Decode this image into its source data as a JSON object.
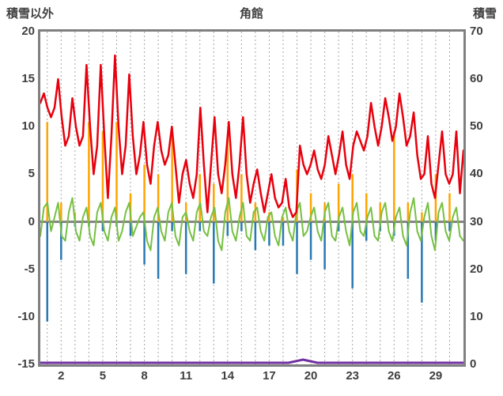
{
  "title": "角館",
  "left_axis": {
    "title": "積雪以外",
    "ticks": [
      "20",
      "15",
      "10",
      "5",
      "0",
      "-5",
      "-10",
      "-15"
    ]
  },
  "right_axis": {
    "title": "積雪",
    "ticks": [
      "70",
      "60",
      "50",
      "40",
      "30",
      "20",
      "10",
      "0"
    ]
  },
  "x_axis": {
    "tick_labels": [
      2,
      5,
      8,
      11,
      14,
      17,
      20,
      23,
      26,
      29
    ],
    "grid_interval_days": 1
  },
  "colors": {
    "red": "#e8000d",
    "orange": "#ffa400",
    "green": "#76c043",
    "blue": "#2878b4",
    "purple": "#7030a0",
    "frame": "#808080",
    "grid": "#a6a6a6",
    "zero_line": "#808080",
    "text": "#404040",
    "background": "#ffffff"
  },
  "chart_data": {
    "type": "line",
    "title": "角館",
    "x_domain": [
      0.5,
      31
    ],
    "left_ylim": [
      -15,
      20
    ],
    "right_ylim": [
      0,
      70
    ],
    "grid": "vertical-dashed-daily",
    "legend": "none",
    "series": [
      {
        "name": "orange-bars",
        "type": "bar",
        "axis": "left",
        "color": "#ffa400",
        "bar_width": 2.5,
        "values": [
          10.5,
          2,
          1,
          10.5,
          9.5,
          10.5,
          3,
          6,
          5,
          10,
          2,
          5,
          4,
          9,
          5,
          2,
          1,
          0.5,
          5.5,
          3,
          2,
          4,
          5,
          3,
          2,
          9.5,
          2,
          1,
          5,
          3
        ]
      },
      {
        "name": "blue-bars",
        "type": "bar",
        "axis": "left",
        "color": "#2878b4",
        "bar_width": 2.5,
        "values": [
          -10.5,
          -4,
          -0.5,
          -0.5,
          -1,
          -0.5,
          -1.5,
          -4.5,
          -6,
          -1,
          -5.5,
          -1,
          -6.5,
          -1.5,
          -1,
          -3,
          -2.5,
          -2.5,
          -5.5,
          -4,
          -5,
          -1,
          -7,
          -2,
          -1,
          -1.5,
          -6,
          -8.5,
          -2,
          -1
        ]
      },
      {
        "name": "green-line",
        "type": "line",
        "axis": "left",
        "color": "#76c043",
        "width": 2,
        "samples_per_day": 4,
        "values": [
          -1.5,
          1.5,
          2,
          -1,
          0.5,
          2,
          -1.5,
          -2,
          1,
          2.5,
          -1,
          -2,
          0.5,
          1.5,
          -1.5,
          -2.5,
          1,
          2,
          -1,
          -2,
          0.5,
          1.5,
          -2,
          -1,
          1,
          2,
          -1.5,
          -0.5,
          0.5,
          1,
          -2,
          -3,
          0.5,
          1.5,
          -1,
          -2,
          1,
          2,
          -1.5,
          -2.5,
          0.5,
          1,
          -1,
          -2,
          1,
          2,
          -1,
          -1.5,
          0.5,
          1.5,
          -2,
          -3,
          1,
          2.5,
          -1,
          -2,
          0.5,
          2,
          -1.5,
          -2,
          1,
          1.5,
          -1,
          -2,
          0.5,
          1,
          -1.5,
          -2.5,
          0.5,
          1.5,
          -1,
          -2,
          1,
          2,
          -1.5,
          -1,
          0.5,
          1.5,
          -1,
          -2,
          1,
          2,
          -1.5,
          -2,
          0.5,
          1.5,
          -1,
          -2.5,
          1,
          2,
          -1,
          -1.5,
          0.5,
          1.5,
          -1.5,
          -2,
          1,
          2,
          -1,
          -2,
          0.5,
          1.5,
          -1.5,
          -2.5,
          1,
          2.5,
          -1,
          -2,
          0.5,
          2,
          -1.5,
          -3,
          1,
          2,
          -1,
          -2,
          0.5,
          1.5,
          -1.5,
          -2
        ]
      },
      {
        "name": "red-line",
        "type": "line",
        "axis": "left",
        "color": "#e8000d",
        "width": 2.5,
        "samples_per_day": 4,
        "values": [
          12.5,
          13.5,
          12,
          11,
          12,
          15,
          11,
          8,
          9,
          13,
          10,
          8,
          9,
          16.5,
          10,
          5,
          8,
          16.5,
          9,
          2.5,
          9,
          17.5,
          10,
          5,
          8,
          15.5,
          9,
          5,
          7,
          10.5,
          6,
          4,
          8,
          10.5,
          7.5,
          6,
          7,
          10,
          6,
          2,
          5,
          6.5,
          4,
          2.5,
          5,
          12,
          6,
          1,
          6,
          11,
          5,
          3,
          6,
          10.5,
          5,
          2.5,
          6,
          11,
          5,
          2,
          4,
          5.5,
          3,
          1,
          3,
          5,
          2.5,
          1.5,
          2,
          4.5,
          1.5,
          0.5,
          1,
          8,
          6,
          5,
          6,
          7.5,
          5.5,
          4.5,
          6,
          9,
          7,
          5,
          7,
          9.5,
          6,
          4.5,
          8,
          9.5,
          8.5,
          7.5,
          9,
          12.5,
          10,
          8,
          10,
          13,
          11,
          8.5,
          10,
          13.5,
          11,
          8,
          9,
          11.5,
          7,
          4.5,
          5,
          9,
          4,
          2.5,
          6,
          9.5,
          5,
          4,
          5,
          9.5,
          3,
          7.5
        ]
      },
      {
        "name": "purple-line",
        "type": "line",
        "axis": "right",
        "color": "#7030a0",
        "width": 3,
        "samples_per_day": 1,
        "values": [
          0,
          0,
          0,
          0,
          0,
          0,
          0,
          0,
          0,
          0,
          0,
          0,
          0,
          0,
          0,
          0,
          0,
          0,
          1,
          0,
          0,
          0,
          0,
          0,
          0,
          0,
          0,
          0,
          0,
          0
        ]
      }
    ]
  }
}
